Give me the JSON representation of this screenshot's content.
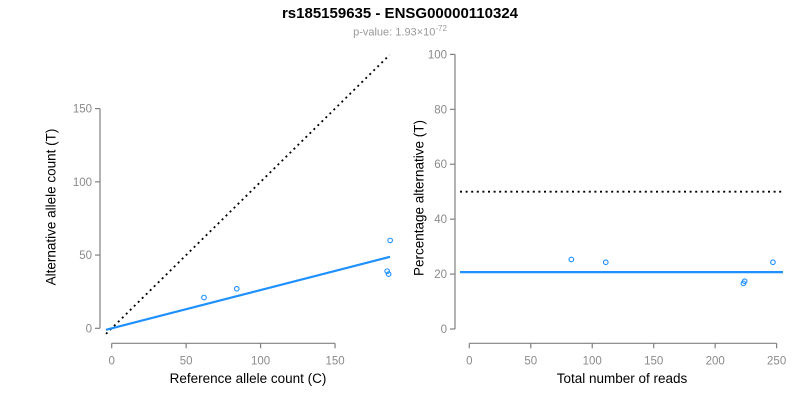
{
  "header": {
    "title": "rs185159635 - ENSG00000110324",
    "subtitle_prefix": "p-value: 1.93×10",
    "subtitle_exponent": "-72"
  },
  "colors": {
    "accent_blue": "#1E90FF",
    "line_black": "#000000",
    "axis_gray": "#808080",
    "tick_label_gray": "#8A8A8A",
    "subtitle_gray": "#999999"
  },
  "chart_data": [
    {
      "type": "scatter",
      "panel": "left",
      "xlabel": "Reference allele count (C)",
      "ylabel": "Alternative allele count (T)",
      "x_ticks": [
        0,
        50,
        100,
        150
      ],
      "y_ticks": [
        0,
        50,
        100,
        150
      ],
      "xlim": [
        0,
        187
      ],
      "ylim": [
        0,
        186
      ],
      "grid": false,
      "points": {
        "x": [
          62,
          84,
          185,
          186,
          187
        ],
        "y": [
          21,
          27,
          39,
          37,
          60
        ]
      },
      "lines": [
        {
          "name": "identity-line",
          "kind": "ab",
          "slope": 1,
          "intercept": 0,
          "style": "dotted",
          "color": "#000000"
        },
        {
          "name": "fit-line",
          "kind": "ab",
          "slope": 0.261,
          "intercept": 0,
          "style": "solid",
          "color": "#1E90FF"
        }
      ]
    },
    {
      "type": "scatter",
      "panel": "right",
      "xlabel": "Total number of reads",
      "ylabel": "Percentage alternative (T)",
      "x_ticks": [
        0,
        50,
        100,
        150,
        200,
        250
      ],
      "y_ticks": [
        0,
        20,
        40,
        60,
        80,
        100
      ],
      "xlim": [
        0,
        250
      ],
      "ylim": [
        0,
        100
      ],
      "grid": false,
      "points": {
        "x": [
          83,
          111,
          224,
          223,
          247
        ],
        "y": [
          25.3,
          24.3,
          17.4,
          16.6,
          24.3
        ]
      },
      "lines": [
        {
          "name": "half-line",
          "kind": "h",
          "value": 50,
          "style": "dotted",
          "color": "#000000"
        },
        {
          "name": "fit-line",
          "kind": "h",
          "value": 20.7,
          "style": "solid",
          "color": "#1E90FF"
        }
      ]
    }
  ]
}
